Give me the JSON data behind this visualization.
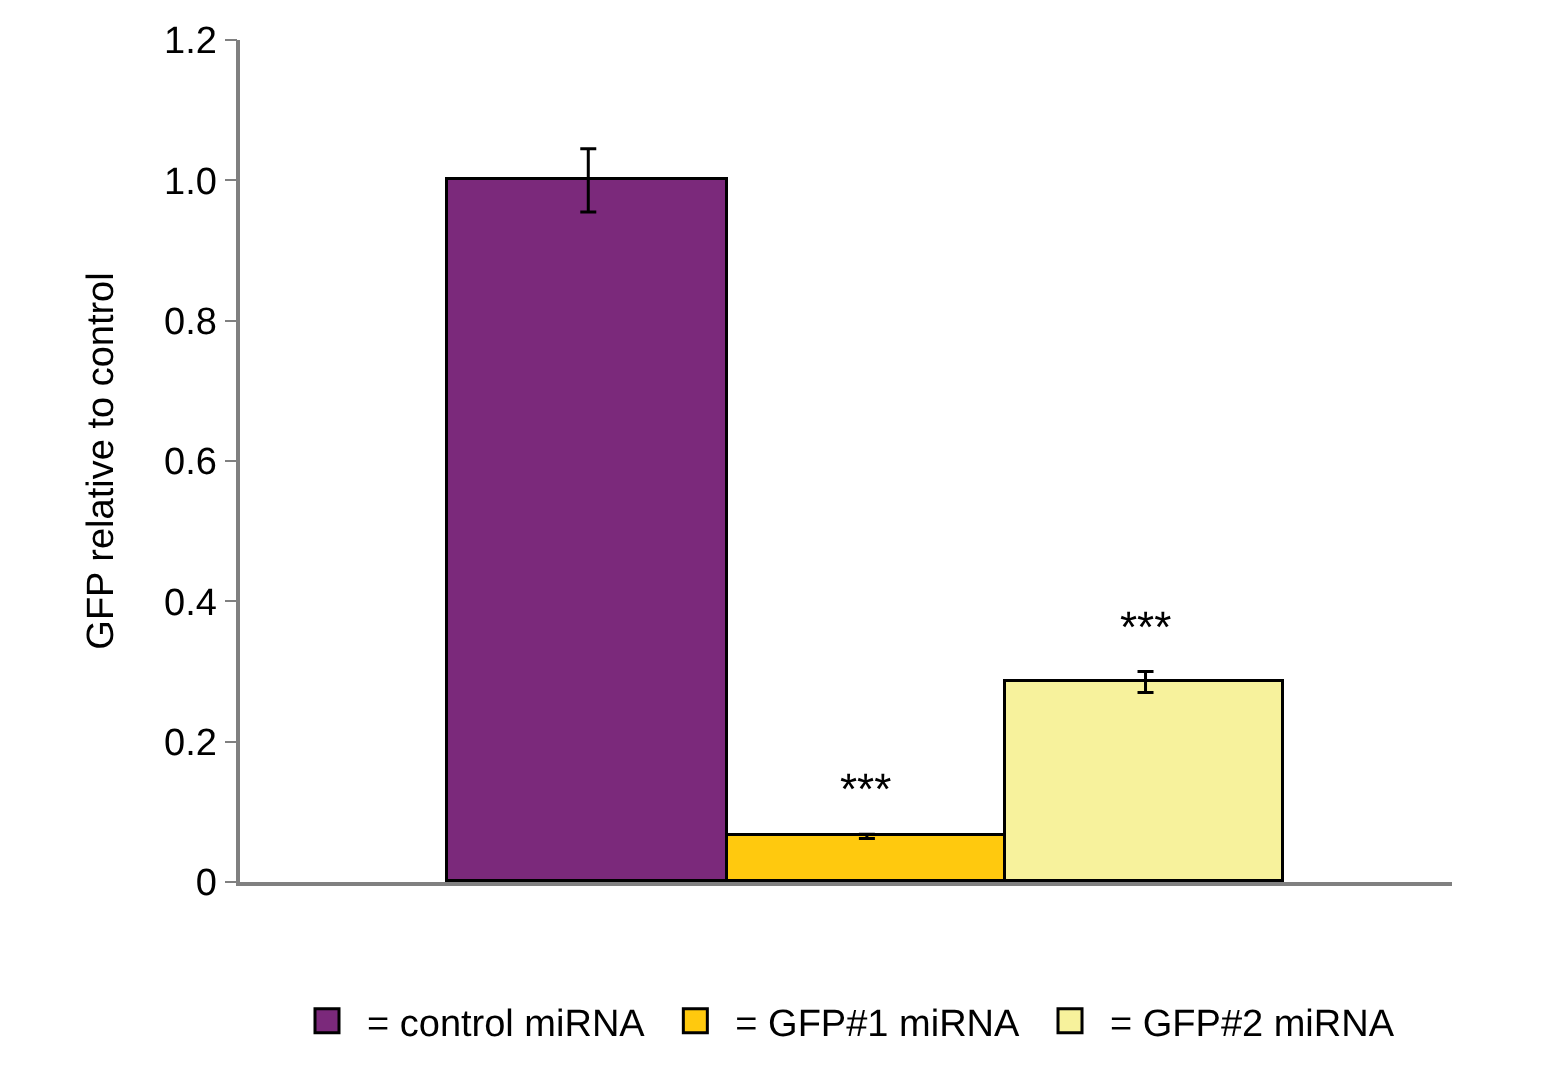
{
  "chart_data": {
    "type": "bar",
    "ylabel": "GFP relative to control",
    "categories": [
      null,
      null,
      null
    ],
    "series": [
      {
        "name": "= control miRNA",
        "color": "#7b297b",
        "values": [
          1.0,
          null,
          null
        ],
        "errors": [
          0.045,
          null,
          null
        ]
      },
      {
        "name": "= GFP#1 miRNA",
        "color": "#ffc90e",
        "values": [
          null,
          0.065,
          null
        ],
        "errors": [
          null,
          0.003,
          null
        ]
      },
      {
        "name": "= GFP#2 miRNA",
        "color": "#f7f29c",
        "values": [
          null,
          null,
          0.285
        ],
        "errors": [
          null,
          null,
          0.015
        ]
      }
    ],
    "ylim": [
      0,
      1.2
    ],
    "yticks": [
      0,
      0.2,
      0.4,
      0.6,
      0.8,
      {
        "value": 1,
        "label": "1.0"
      },
      1.2
    ],
    "annotations": [
      "***",
      "***"
    ],
    "grid": false,
    "legend": "bottom"
  }
}
